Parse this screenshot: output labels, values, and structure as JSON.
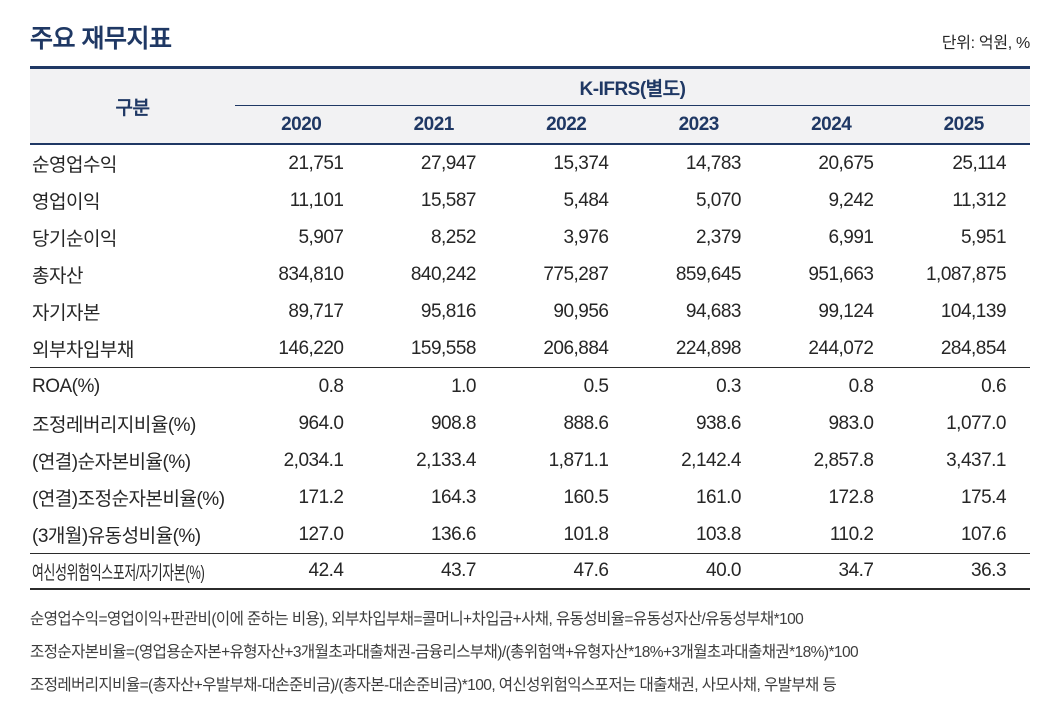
{
  "page": {
    "title": "주요 재무지표",
    "unit_label": "단위: 억원, %"
  },
  "table": {
    "corner_label": "구분",
    "group_header": "K-IFRS(별도)",
    "years": [
      "2020",
      "2021",
      "2022",
      "2023",
      "2024",
      "2025"
    ],
    "sections": [
      {
        "rows": [
          {
            "label": "순영업수익",
            "values": [
              "21,751",
              "27,947",
              "15,374",
              "14,783",
              "20,675",
              "25,114"
            ]
          },
          {
            "label": "영업이익",
            "values": [
              "11,101",
              "15,587",
              "5,484",
              "5,070",
              "9,242",
              "11,312"
            ]
          },
          {
            "label": "당기순이익",
            "values": [
              "5,907",
              "8,252",
              "3,976",
              "2,379",
              "6,991",
              "5,951"
            ]
          },
          {
            "label": "총자산",
            "values": [
              "834,810",
              "840,242",
              "775,287",
              "859,645",
              "951,663",
              "1,087,875"
            ]
          },
          {
            "label": "자기자본",
            "values": [
              "89,717",
              "95,816",
              "90,956",
              "94,683",
              "99,124",
              "104,139"
            ]
          },
          {
            "label": "외부차입부채",
            "values": [
              "146,220",
              "159,558",
              "206,884",
              "224,898",
              "244,072",
              "284,854"
            ]
          }
        ]
      },
      {
        "rows": [
          {
            "label": "ROA(%)",
            "values": [
              "0.8",
              "1.0",
              "0.5",
              "0.3",
              "0.8",
              "0.6"
            ]
          },
          {
            "label": "조정레버리지비율(%)",
            "values": [
              "964.0",
              "908.8",
              "888.6",
              "938.6",
              "983.0",
              "1,077.0"
            ]
          },
          {
            "label": "(연결)순자본비율(%)",
            "values": [
              "2,034.1",
              "2,133.4",
              "1,871.1",
              "2,142.4",
              "2,857.8",
              "3,437.1"
            ]
          },
          {
            "label": "(연결)조정순자본비율(%)",
            "values": [
              "171.2",
              "164.3",
              "160.5",
              "161.0",
              "172.8",
              "175.4"
            ]
          },
          {
            "label": "(3개월)유동성비율(%)",
            "values": [
              "127.0",
              "136.6",
              "101.8",
              "103.8",
              "110.2",
              "107.6"
            ]
          }
        ]
      },
      {
        "rows": [
          {
            "label": "여신성위험익스포저/자기자본(%)",
            "values": [
              "42.4",
              "43.7",
              "47.6",
              "40.0",
              "34.7",
              "36.3"
            ]
          }
        ]
      }
    ]
  },
  "footnotes": [
    "순영업수익=영업이익+판관비(이에 준하는 비용), 외부차입부채=콜머니+차입금+사채, 유동성비율=유동성자산/유동성부채*100",
    "조정순자본비율=(영업용순자본+유형자산+3개월초과대출채권-금융리스부채)/(총위험액+유형자산*18%+3개월초과대출채권*18%)*100",
    "조정레버리지비율=(총자산+우발부채-대손준비금)/(총자본-대손준비금)*100, 여신성위험익스포저는 대출채권, 사모사채, 우발부채 등"
  ],
  "colors": {
    "accent_navy": "#1F3864",
    "header_background": "#F2F2F3",
    "body_text": "#262626"
  }
}
